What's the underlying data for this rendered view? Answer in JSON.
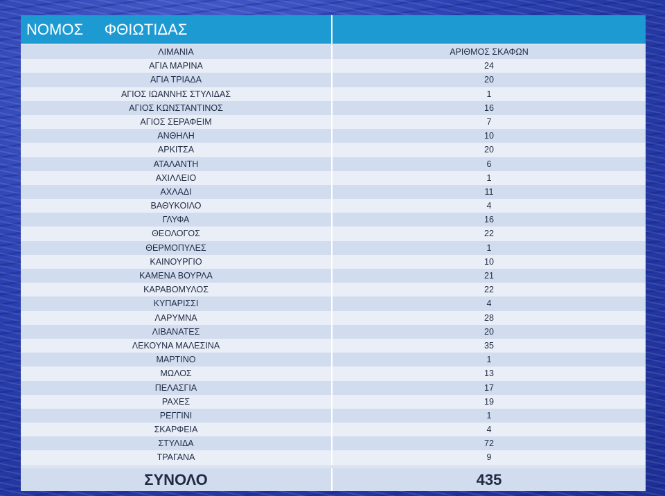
{
  "header": {
    "title": "ΝΟΜΟΣ     ΦΘΙΩΤΙΔΑΣ"
  },
  "table": {
    "columns": [
      "ΛΙΜΑΝΙΑ",
      "ΑΡΙΘΜΟΣ ΣΚΑΦΩΝ"
    ],
    "rows": [
      [
        "ΑΓΙΑ ΜΑΡΙΝΑ",
        "24"
      ],
      [
        "ΑΓΙΑ ΤΡΙΑΔΑ",
        "20"
      ],
      [
        "ΑΓΙΟΣ ΙΩΑΝΝΗΣ ΣΤΥΛΙΔΑΣ",
        "1"
      ],
      [
        "ΑΓΙΟΣ ΚΩΝΣΤΑΝΤΙΝΟΣ",
        "16"
      ],
      [
        "ΑΓΙΟΣ ΣΕΡΑΦΕΙΜ",
        "7"
      ],
      [
        "ΑΝΘΗΛΗ",
        "10"
      ],
      [
        "ΑΡΚΙΤΣΑ",
        "20"
      ],
      [
        "ΑΤΑΛΑΝΤΗ",
        "6"
      ],
      [
        "ΑΧΙΛΛΕΙΟ",
        "1"
      ],
      [
        "ΑΧΛΑΔΙ",
        "11"
      ],
      [
        "ΒΑΘΥΚΟΙΛΟ",
        "4"
      ],
      [
        "ΓΛΥΦΑ",
        "16"
      ],
      [
        "ΘΕΟΛΟΓΟΣ",
        "22"
      ],
      [
        "ΘΕΡΜΟΠΥΛΕΣ",
        "1"
      ],
      [
        "ΚΑΙΝΟΥΡΓΙΟ",
        "10"
      ],
      [
        "ΚΑΜΕΝΑ ΒΟΥΡΛΑ",
        "21"
      ],
      [
        "ΚΑΡΑΒΟΜΥΛΟΣ",
        "22"
      ],
      [
        "ΚΥΠΑΡΙΣΣΙ",
        "4"
      ],
      [
        "ΛΑΡΥΜΝΑ",
        "28"
      ],
      [
        "ΛΙΒΑΝΑΤΕΣ",
        "20"
      ],
      [
        "ΛΕΚΟΥΝΑ ΜΑΛΕΣΙΝΑ",
        "35"
      ],
      [
        "ΜΑΡΤΙΝΟ",
        "1"
      ],
      [
        "ΜΩΛΟΣ",
        "13"
      ],
      [
        "ΠΕΛΑΣΓΙΑ",
        "17"
      ],
      [
        "ΡΑΧΕΣ",
        "19"
      ],
      [
        "ΡΕΓΓΙΝΙ",
        "1"
      ],
      [
        "ΣΚΑΡΦΕΙΑ",
        "4"
      ],
      [
        "ΣΤΥΛΙΔΑ",
        "72"
      ],
      [
        "ΤΡΑΓΑΝΑ",
        "9"
      ]
    ],
    "total_label": "ΣΥΝΟΛΟ",
    "total_value": "435"
  }
}
